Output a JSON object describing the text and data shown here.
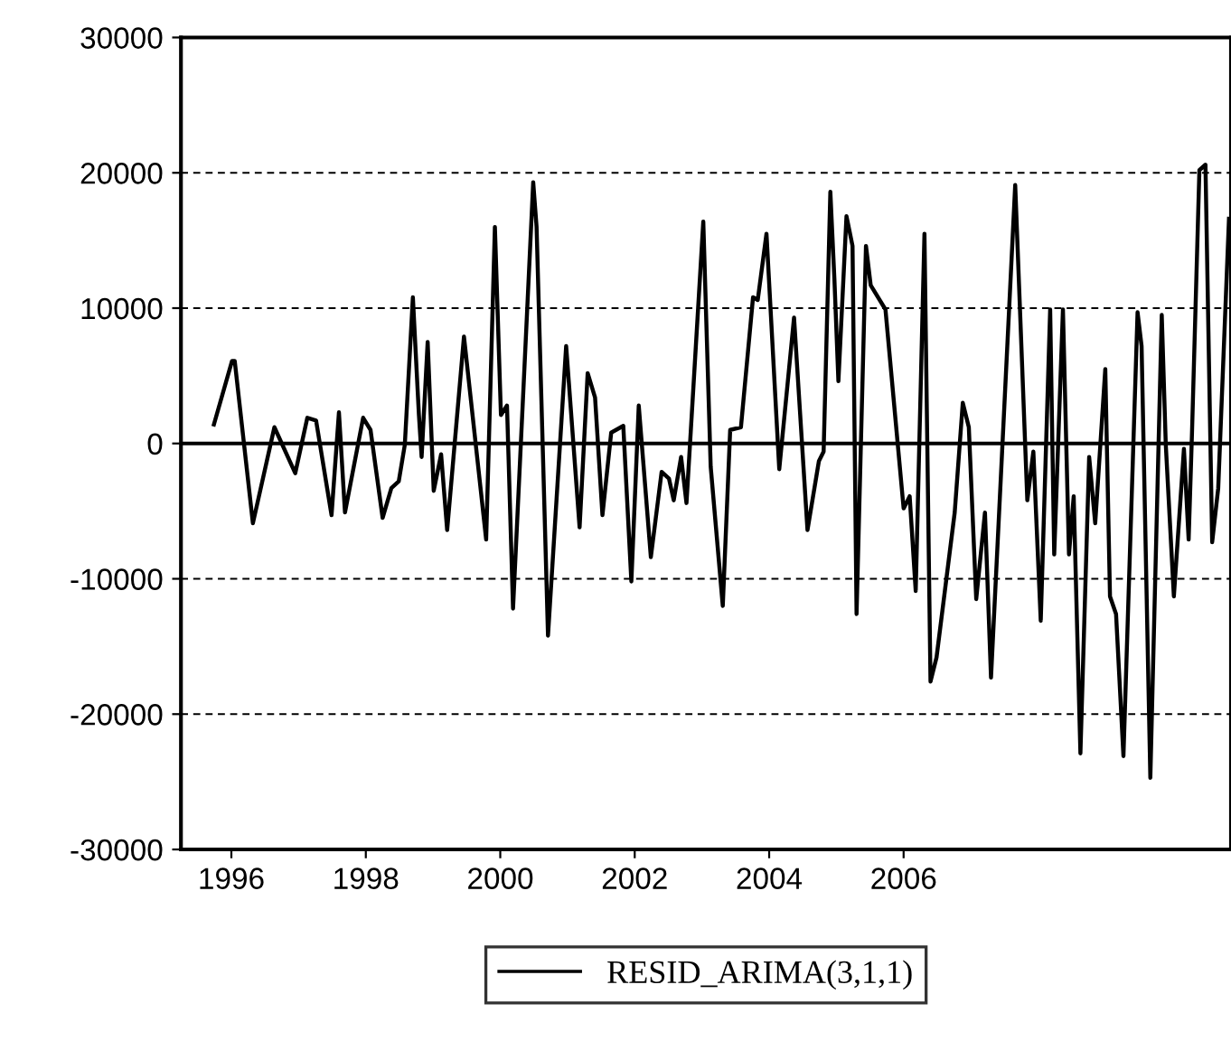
{
  "chart_data": {
    "type": "line",
    "xlim": [
      1995.25,
      2010.87
    ],
    "xticks": [
      1996,
      1998,
      2000,
      2002,
      2004,
      2006
    ],
    "ylim": [
      -30000,
      30000
    ],
    "yticks": [
      -30000,
      -20000,
      -10000,
      0,
      10000,
      20000,
      30000
    ],
    "grid": "y",
    "legend": "bottom",
    "line_style": "solid",
    "marker": "none",
    "ref_lines": [
      {
        "axis": "y",
        "value": 0,
        "color": "#000000",
        "line_style": "solid"
      }
    ],
    "series": [
      {
        "name": "RESID_ARIMA(3,1,1)",
        "color": "#000000",
        "x": [
          1995.74,
          1996.01,
          1996.05,
          1996.32,
          1996.64,
          1996.95,
          1997.13,
          1997.26,
          1997.49,
          1997.6,
          1997.69,
          1997.96,
          1998.07,
          1998.25,
          1998.38,
          1998.49,
          1998.58,
          1998.7,
          1998.79,
          1998.83,
          1998.92,
          1999.01,
          1999.12,
          1999.21,
          1999.46,
          1999.79,
          1999.92,
          2000.01,
          2000.1,
          2000.19,
          2000.49,
          2000.54,
          2000.71,
          2000.98,
          2001.18,
          2001.3,
          2001.41,
          2001.52,
          2001.65,
          2001.83,
          2001.95,
          2002.06,
          2002.24,
          2002.4,
          2002.51,
          2002.58,
          2002.69,
          2002.77,
          2003.02,
          2003.13,
          2003.31,
          2003.42,
          2003.58,
          2003.76,
          2003.83,
          2003.96,
          2004.15,
          2004.37,
          2004.57,
          2004.74,
          2004.81,
          2004.91,
          2004.97,
          2005.03,
          2005.15,
          2005.24,
          2005.3,
          2005.44,
          2005.51,
          2005.73,
          2006.0,
          2006.09,
          2006.18,
          2006.31,
          2006.4,
          2006.49,
          2006.76,
          2006.88,
          2006.97,
          2007.08,
          2007.21,
          2007.3,
          2007.66,
          2007.84,
          2007.93,
          2008.04,
          2008.18,
          2008.24,
          2008.37,
          2008.46,
          2008.53,
          2008.63,
          2008.76,
          2008.85,
          2009.0,
          2009.07,
          2009.16,
          2009.27,
          2009.48,
          2009.54,
          2009.67,
          2009.84,
          2009.9,
          2010.02,
          2010.17,
          2010.24,
          2010.29,
          2010.4,
          2010.49,
          2010.59,
          2010.68,
          2010.84
        ],
        "values": [
          1400,
          6100,
          6100,
          -5900,
          1200,
          -2200,
          1900,
          1700,
          -5300,
          2300,
          -5100,
          1900,
          1000,
          -5500,
          -3300,
          -2800,
          -100,
          10800,
          2100,
          -1000,
          7500,
          -3500,
          -800,
          -6400,
          7900,
          -7100,
          16000,
          2100,
          2800,
          -12200,
          19300,
          16000,
          -14200,
          7200,
          -6200,
          5200,
          3400,
          -5300,
          800,
          1300,
          -10200,
          2800,
          -8400,
          -2100,
          -2600,
          -4200,
          -1000,
          -4400,
          16400,
          -1700,
          -12000,
          1000,
          1200,
          10800,
          10600,
          15500,
          -1900,
          9300,
          -6400,
          -1300,
          -600,
          18600,
          12200,
          4600,
          16800,
          14600,
          -12600,
          14600,
          11700,
          9900,
          -4800,
          -3900,
          -10900,
          15500,
          -17600,
          -15800,
          -5100,
          3000,
          1200,
          -11500,
          -5100,
          -17300,
          19100,
          -4200,
          -600,
          -13100,
          9900,
          -8200,
          9900,
          -8200,
          -3900,
          -22900,
          -1000,
          -5900,
          5500,
          -11300,
          -12600,
          -23100,
          9700,
          7200,
          -24700,
          9500,
          -100,
          -11300,
          -400,
          -7100,
          800,
          20200,
          20600,
          -7300,
          -3300,
          16600
        ]
      }
    ]
  }
}
